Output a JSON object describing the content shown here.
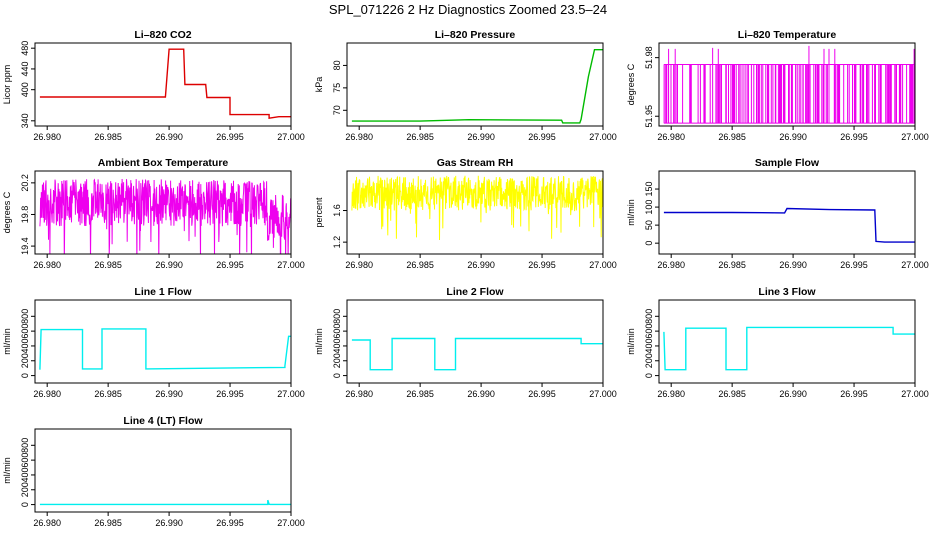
{
  "page_title": "SPL_071226  2 Hz Diagnostics Zoomed 23.5–24",
  "chart_data": [
    {
      "type": "line",
      "title": "Li–820 CO2",
      "ylabel": "Licor ppm",
      "color": "#dd0000",
      "xlim": [
        26.979,
        27.0
      ],
      "ylim": [
        330,
        490
      ],
      "xticks": [
        26.98,
        26.985,
        26.99,
        26.995,
        27.0
      ],
      "xtick_labels": [
        "26.980",
        "26.985",
        "26.990",
        "26.995",
        "27.000"
      ],
      "yticks": [
        340,
        400,
        440,
        480
      ],
      "series": [
        {
          "x": [
            26.9794,
            26.98,
            26.9848,
            26.9897,
            26.99,
            26.9912,
            26.9913,
            26.9925,
            26.993,
            26.9931,
            26.9945,
            26.995,
            26.995,
            26.997,
            26.9982,
            26.9982,
            26.999,
            27.0
          ],
          "y": [
            386,
            386,
            386,
            386,
            478,
            478,
            410,
            410,
            410,
            385,
            385,
            385,
            352,
            352,
            352,
            345,
            348,
            348
          ]
        }
      ]
    },
    {
      "type": "line",
      "title": "Li–820 Pressure",
      "ylabel": "kPa",
      "color": "#00bb00",
      "xlim": [
        26.979,
        27.0
      ],
      "ylim": [
        66.5,
        85
      ],
      "xticks": [
        26.98,
        26.985,
        26.99,
        26.995,
        27.0
      ],
      "xtick_labels": [
        "26.980",
        "26.985",
        "26.990",
        "26.995",
        "27.000"
      ],
      "yticks": [
        70,
        75,
        80
      ],
      "series": [
        {
          "x": [
            26.9794,
            26.985,
            26.989,
            26.9966,
            26.9967,
            26.9981,
            26.9982,
            26.9988,
            26.9993,
            27.0
          ],
          "y": [
            67.6,
            67.6,
            67.9,
            67.8,
            67.2,
            67.2,
            68.0,
            77.5,
            83.5,
            83.5
          ]
        }
      ]
    },
    {
      "type": "line",
      "title": "Li–820 Temperature",
      "ylabel": "degrees C",
      "color": "#ee00ee",
      "xlim": [
        26.979,
        27.0
      ],
      "ylim": [
        51.945,
        51.9875
      ],
      "xticks": [
        26.98,
        26.985,
        26.99,
        26.995,
        27.0
      ],
      "xtick_labels": [
        "26.980",
        "26.985",
        "26.990",
        "26.995",
        "27.000"
      ],
      "yticks": [
        51.95,
        51.98
      ],
      "series": [
        {
          "x": [
            26.9794,
            27.0
          ],
          "y": [
            51.9465,
            51.9765
          ]
        }
      ]
    },
    {
      "type": "line",
      "title": "Ambient Box Temperature",
      "ylabel": "degrees C",
      "color": "#ee00ee",
      "xlim": [
        26.979,
        27.0
      ],
      "ylim": [
        19.3,
        20.35
      ],
      "xticks": [
        26.98,
        26.985,
        26.99,
        26.995,
        27.0
      ],
      "xtick_labels": [
        "26.980",
        "26.985",
        "26.990",
        "26.995",
        "27.000"
      ],
      "yticks": [
        19.4,
        19.8,
        20.2
      ],
      "series": [
        {
          "x": [
            26.9794,
            27.0
          ],
          "y": [
            19.95,
            19.95
          ]
        }
      ]
    },
    {
      "type": "line",
      "title": "Gas Stream RH",
      "ylabel": "percent",
      "color": "#ffff00",
      "xlim": [
        26.979,
        27.0
      ],
      "ylim": [
        1.05,
        2.1
      ],
      "xticks": [
        26.98,
        26.985,
        26.99,
        26.995,
        27.0
      ],
      "xtick_labels": [
        "26.980",
        "26.985",
        "26.990",
        "26.995",
        "27.000"
      ],
      "yticks": [
        1.2,
        1.6
      ],
      "series": [
        {
          "x": [
            26.9794,
            27.0
          ],
          "y": [
            1.82,
            1.82
          ]
        }
      ]
    },
    {
      "type": "line",
      "title": "Sample Flow",
      "ylabel": "ml/min",
      "color": "#0000cc",
      "xlim": [
        26.979,
        27.0
      ],
      "ylim": [
        -30,
        200
      ],
      "xticks": [
        26.98,
        26.985,
        26.99,
        26.995,
        27.0
      ],
      "xtick_labels": [
        "26.980",
        "26.985",
        "26.990",
        "26.995",
        "27.000"
      ],
      "yticks": [
        0,
        50,
        100,
        150
      ],
      "series": [
        {
          "x": [
            26.9794,
            26.985,
            26.9893,
            26.9895,
            26.993,
            26.9967,
            26.9968,
            26.9975,
            27.0
          ],
          "y": [
            85,
            85,
            84,
            96,
            93,
            92,
            5,
            3,
            3
          ]
        }
      ]
    },
    {
      "type": "line",
      "title": "Line 1 Flow",
      "ylabel": "ml/min",
      "color": "#00eeee",
      "xlim": [
        26.979,
        27.0
      ],
      "ylim": [
        -100,
        1020
      ],
      "xticks": [
        26.98,
        26.985,
        26.99,
        26.995,
        27.0
      ],
      "xtick_labels": [
        "26.980",
        "26.985",
        "26.990",
        "26.995",
        "27.000"
      ],
      "yticks": [
        0,
        200,
        400,
        600,
        800
      ],
      "series": [
        {
          "x": [
            26.9794,
            26.9795,
            26.9829,
            26.9829,
            26.9845,
            26.9845,
            26.9881,
            26.9881,
            26.9995,
            26.9995,
            26.9998,
            27.0
          ],
          "y": [
            80,
            620,
            620,
            90,
            90,
            630,
            630,
            90,
            110,
            130,
            530,
            530
          ]
        }
      ]
    },
    {
      "type": "line",
      "title": "Line 2 Flow",
      "ylabel": "ml/min",
      "color": "#00eeee",
      "xlim": [
        26.979,
        27.0
      ],
      "ylim": [
        -100,
        1020
      ],
      "xticks": [
        26.98,
        26.985,
        26.99,
        26.995,
        27.0
      ],
      "xtick_labels": [
        "26.980",
        "26.985",
        "26.990",
        "26.995",
        "27.000"
      ],
      "yticks": [
        0,
        200,
        400,
        600,
        800
      ],
      "series": [
        {
          "x": [
            26.9794,
            26.9809,
            26.9809,
            26.9827,
            26.9827,
            26.9862,
            26.9862,
            26.9879,
            26.9879,
            26.9982,
            26.9982,
            27.0
          ],
          "y": [
            480,
            480,
            80,
            80,
            500,
            500,
            80,
            80,
            500,
            500,
            430,
            430
          ]
        }
      ]
    },
    {
      "type": "line",
      "title": "Line 3 Flow",
      "ylabel": "ml/min",
      "color": "#00eeee",
      "xlim": [
        26.979,
        27.0
      ],
      "ylim": [
        -100,
        1020
      ],
      "xticks": [
        26.98,
        26.985,
        26.99,
        26.995,
        27.0
      ],
      "xtick_labels": [
        "26.980",
        "26.985",
        "26.990",
        "26.995",
        "27.000"
      ],
      "yticks": [
        0,
        200,
        400,
        600,
        800
      ],
      "series": [
        {
          "x": [
            26.9794,
            26.9795,
            26.9812,
            26.9812,
            26.9845,
            26.9845,
            26.9862,
            26.9862,
            26.9982,
            26.9982,
            27.0
          ],
          "y": [
            590,
            80,
            80,
            640,
            640,
            80,
            80,
            650,
            650,
            560,
            560
          ]
        }
      ]
    },
    {
      "type": "line",
      "title": "Line 4 (LT) Flow",
      "ylabel": "ml/min",
      "color": "#00eeee",
      "xlim": [
        26.979,
        27.0
      ],
      "ylim": [
        -100,
        1020
      ],
      "xticks": [
        26.98,
        26.985,
        26.99,
        26.995,
        27.0
      ],
      "xtick_labels": [
        "26.980",
        "26.985",
        "26.990",
        "26.995",
        "27.000"
      ],
      "yticks": [
        0,
        200,
        400,
        600,
        800
      ],
      "series": [
        {
          "x": [
            26.9794,
            26.9981,
            26.9981,
            26.9982,
            26.9983,
            27.0
          ],
          "y": [
            2,
            2,
            60,
            5,
            3,
            3
          ]
        }
      ]
    }
  ]
}
